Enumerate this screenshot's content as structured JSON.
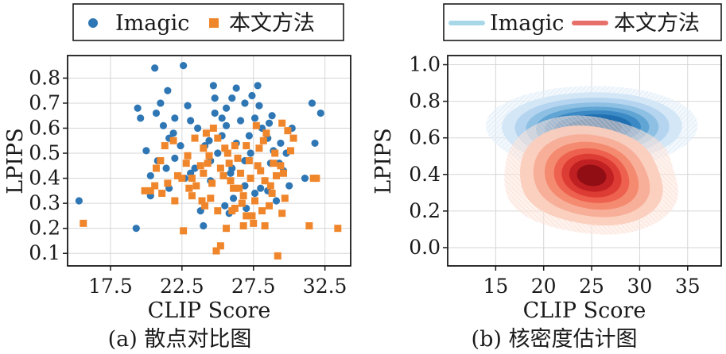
{
  "chart_data": [
    {
      "type": "scatter",
      "caption": "(a) 散点对比图",
      "xlabel": "CLIP Score",
      "ylabel": "LPIPS",
      "xlim": [
        14.5,
        34.3
      ],
      "ylim": [
        0.05,
        0.89
      ],
      "xticks": [
        "17.5",
        "22.5",
        "27.5",
        "32.5"
      ],
      "yticks": [
        "0.1",
        "0.2",
        "0.3",
        "0.4",
        "0.5",
        "0.6",
        "0.7",
        "0.8"
      ],
      "grid": true,
      "legend_position": "top",
      "series": [
        {
          "name": "Imagic",
          "color": "#2f77b4",
          "marker": "circle",
          "points": [
            [
              15.3,
              0.31
            ],
            [
              19.3,
              0.2
            ],
            [
              19.6,
              0.64
            ],
            [
              19.4,
              0.68
            ],
            [
              20.6,
              0.84
            ],
            [
              21.5,
              0.75
            ],
            [
              20.7,
              0.66
            ],
            [
              21.0,
              0.7
            ],
            [
              22.0,
              0.64
            ],
            [
              21.2,
              0.61
            ],
            [
              22.6,
              0.85
            ],
            [
              23.1,
              0.63
            ],
            [
              23.6,
              0.6
            ],
            [
              24.4,
              0.55
            ],
            [
              24.7,
              0.77
            ],
            [
              24.8,
              0.72
            ],
            [
              25.3,
              0.64
            ],
            [
              25.6,
              0.68
            ],
            [
              25.6,
              0.61
            ],
            [
              26.3,
              0.76
            ],
            [
              26.0,
              0.72
            ],
            [
              26.3,
              0.54
            ],
            [
              26.6,
              0.63
            ],
            [
              26.9,
              0.7
            ],
            [
              27.4,
              0.73
            ],
            [
              27.8,
              0.77
            ],
            [
              27.9,
              0.69
            ],
            [
              28.1,
              0.6
            ],
            [
              28.5,
              0.56
            ],
            [
              27.6,
              0.64
            ],
            [
              28.7,
              0.46
            ],
            [
              28.9,
              0.51
            ],
            [
              28.0,
              0.36
            ],
            [
              27.6,
              0.34
            ],
            [
              26.9,
              0.37
            ],
            [
              25.5,
              0.29
            ],
            [
              24.0,
              0.21
            ],
            [
              23.8,
              0.27
            ],
            [
              22.7,
              0.4
            ],
            [
              21.6,
              0.36
            ],
            [
              20.8,
              0.47
            ],
            [
              20.3,
              0.41
            ],
            [
              20.0,
              0.51
            ],
            [
              21.9,
              0.58
            ],
            [
              22.9,
              0.69
            ],
            [
              22.0,
              0.48
            ],
            [
              23.4,
              0.44
            ],
            [
              24.5,
              0.47
            ],
            [
              25.0,
              0.5
            ],
            [
              26.0,
              0.44
            ],
            [
              27.2,
              0.57
            ],
            [
              28.6,
              0.62
            ],
            [
              29.4,
              0.54
            ],
            [
              29.3,
              0.46
            ],
            [
              29.8,
              0.5
            ],
            [
              30.0,
              0.37
            ],
            [
              29.1,
              0.31
            ],
            [
              31.1,
              0.4
            ],
            [
              31.6,
              0.7
            ],
            [
              31.8,
              0.54
            ],
            [
              32.2,
              0.66
            ],
            [
              24.5,
              0.39
            ],
            [
              25.9,
              0.42
            ],
            [
              26.9,
              0.47
            ],
            [
              23.1,
              0.42
            ],
            [
              21.4,
              0.44
            ],
            [
              20.3,
              0.33
            ],
            [
              27.0,
              0.28
            ],
            [
              28.5,
              0.35
            ],
            [
              25.3,
              0.57
            ],
            [
              22.4,
              0.53
            ],
            [
              24.1,
              0.53
            ],
            [
              26.1,
              0.32
            ],
            [
              29.6,
              0.43
            ],
            [
              30.2,
              0.6
            ],
            [
              28.8,
              0.65
            ],
            [
              25.8,
              0.26
            ],
            [
              27.3,
              0.5
            ],
            [
              21.6,
              0.56
            ],
            [
              24.8,
              0.66
            ]
          ]
        },
        {
          "name": "本文方法",
          "color": "#f0862b",
          "marker": "square",
          "points": [
            [
              15.6,
              0.22
            ],
            [
              19.9,
              0.35
            ],
            [
              20.3,
              0.35
            ],
            [
              20.7,
              0.44
            ],
            [
              21.1,
              0.34
            ],
            [
              21.3,
              0.53
            ],
            [
              21.5,
              0.38
            ],
            [
              22.2,
              0.41
            ],
            [
              22.6,
              0.19
            ],
            [
              22.9,
              0.49
            ],
            [
              23.2,
              0.4
            ],
            [
              23.5,
              0.37
            ],
            [
              23.8,
              0.45
            ],
            [
              24.0,
              0.52
            ],
            [
              24.2,
              0.58
            ],
            [
              24.5,
              0.32
            ],
            [
              24.6,
              0.38
            ],
            [
              24.9,
              0.11
            ],
            [
              25.0,
              0.27
            ],
            [
              25.2,
              0.44
            ],
            [
              25.5,
              0.52
            ],
            [
              25.7,
              0.5
            ],
            [
              25.9,
              0.39
            ],
            [
              26.1,
              0.36
            ],
            [
              26.2,
              0.28
            ],
            [
              26.4,
              0.48
            ],
            [
              26.6,
              0.42
            ],
            [
              26.8,
              0.33
            ],
            [
              27.0,
              0.53
            ],
            [
              27.2,
              0.47
            ],
            [
              27.4,
              0.25
            ],
            [
              27.6,
              0.31
            ],
            [
              27.8,
              0.45
            ],
            [
              27.9,
              0.52
            ],
            [
              28.1,
              0.27
            ],
            [
              28.3,
              0.39
            ],
            [
              28.4,
              0.58
            ],
            [
              28.6,
              0.29
            ],
            [
              28.8,
              0.34
            ],
            [
              29.0,
              0.5
            ],
            [
              29.2,
              0.09
            ],
            [
              29.4,
              0.45
            ],
            [
              29.6,
              0.42
            ],
            [
              29.9,
              0.59
            ],
            [
              30.3,
              0.56
            ],
            [
              31.7,
              0.4
            ],
            [
              31.9,
              0.4
            ],
            [
              31.4,
              0.21
            ],
            [
              33.4,
              0.2
            ],
            [
              28.3,
              0.21
            ],
            [
              26.0,
              0.27
            ],
            [
              25.2,
              0.13
            ],
            [
              23.9,
              0.31
            ],
            [
              22.8,
              0.46
            ],
            [
              21.9,
              0.55
            ],
            [
              23.4,
              0.56
            ],
            [
              24.7,
              0.6
            ],
            [
              27.7,
              0.61
            ],
            [
              29.5,
              0.62
            ],
            [
              28.9,
              0.46
            ],
            [
              26.8,
              0.21
            ],
            [
              25.6,
              0.2
            ],
            [
              24.1,
              0.29
            ],
            [
              23.0,
              0.36
            ],
            [
              22.5,
              0.4
            ],
            [
              24.3,
              0.46
            ],
            [
              25.4,
              0.41
            ],
            [
              26.5,
              0.36
            ],
            [
              27.3,
              0.4
            ],
            [
              28.0,
              0.43
            ],
            [
              28.7,
              0.37
            ],
            [
              29.1,
              0.41
            ],
            [
              29.5,
              0.26
            ],
            [
              29.7,
              0.32
            ],
            [
              27.0,
              0.25
            ],
            [
              26.2,
              0.53
            ],
            [
              25.0,
              0.56
            ],
            [
              24.0,
              0.42
            ],
            [
              23.2,
              0.33
            ],
            [
              22.0,
              0.31
            ],
            [
              21.0,
              0.47
            ],
            [
              20.6,
              0.37
            ],
            [
              30.1,
              0.51
            ],
            [
              28.2,
              0.55
            ],
            [
              27.5,
              0.22
            ],
            [
              26.7,
              0.3
            ],
            [
              25.8,
              0.46
            ],
            [
              24.4,
              0.49
            ]
          ]
        }
      ]
    },
    {
      "type": "kde",
      "caption": "(b) 核密度估计图",
      "xlabel": "CLIP Score",
      "ylabel": "LPIPS",
      "xlim": [
        10,
        38.5
      ],
      "ylim": [
        -0.1,
        1.05
      ],
      "xticks": [
        "15",
        "20",
        "25",
        "30",
        "35"
      ],
      "yticks": [
        "0.0",
        "0.2",
        "0.4",
        "0.6",
        "0.8",
        "1.0"
      ],
      "grid": true,
      "legend_position": "top",
      "series": [
        {
          "name": "Imagic",
          "color": "#a8d8e8",
          "colormap": "Blues",
          "components": [
            {
              "x": 25.0,
              "y": 0.67,
              "sx": 4.4,
              "sy": 0.085,
              "w": 1.0
            },
            {
              "x": 22.0,
              "y": 0.6,
              "sx": 2.6,
              "sy": 0.08,
              "w": 0.35
            },
            {
              "x": 28.0,
              "y": 0.64,
              "sx": 2.6,
              "sy": 0.08,
              "w": 0.35
            }
          ]
        },
        {
          "name": "本文方法",
          "color": "#e8706b",
          "colormap": "Reds",
          "components": [
            {
              "x": 25.0,
              "y": 0.4,
              "sx": 2.3,
              "sy": 0.085,
              "w": 1.0
            },
            {
              "x": 23.0,
              "y": 0.44,
              "sx": 3.2,
              "sy": 0.13,
              "w": 0.55
            },
            {
              "x": 27.5,
              "y": 0.32,
              "sx": 2.8,
              "sy": 0.11,
              "w": 0.45
            },
            {
              "x": 25.0,
              "y": 0.28,
              "sx": 4.5,
              "sy": 0.1,
              "w": 0.25
            },
            {
              "x": 26.0,
              "y": 0.52,
              "sx": 4.0,
              "sy": 0.09,
              "w": 0.2
            }
          ]
        }
      ]
    }
  ]
}
